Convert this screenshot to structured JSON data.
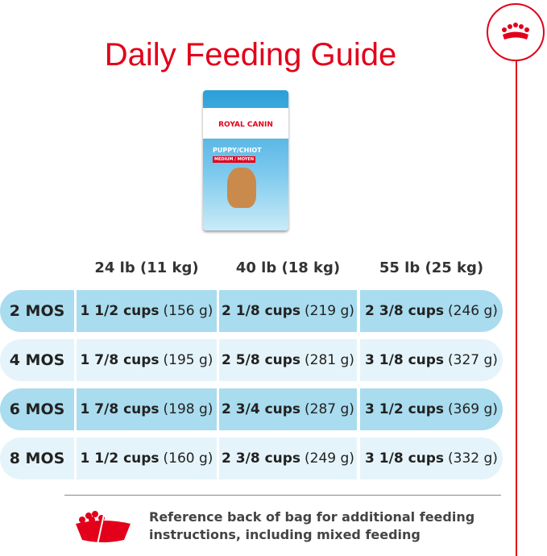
{
  "title": "Daily Feeding Guide",
  "product": {
    "brand": "ROYAL CANIN",
    "name": "PUPPY/CHIOT",
    "size": "MEDIUM / MOYEN"
  },
  "columns": [
    "24 lb (11 kg)",
    "40 lb (18 kg)",
    "55 lb (25 kg)"
  ],
  "rows": [
    {
      "age": "2 MOS",
      "cells": [
        {
          "cups": "1 1/2 cups",
          "grams": "(156 g)"
        },
        {
          "cups": "2 1/8 cups",
          "grams": "(219 g)"
        },
        {
          "cups": "2 3/8 cups",
          "grams": "(246 g)"
        }
      ]
    },
    {
      "age": "4 MOS",
      "cells": [
        {
          "cups": "1 7/8 cups",
          "grams": "(195 g)"
        },
        {
          "cups": "2 5/8 cups",
          "grams": "(281 g)"
        },
        {
          "cups": "3 1/8 cups",
          "grams": "(327 g)"
        }
      ]
    },
    {
      "age": "6 MOS",
      "cells": [
        {
          "cups": "1 7/8 cups",
          "grams": "(198 g)"
        },
        {
          "cups": "2 3/4 cups",
          "grams": "(287 g)"
        },
        {
          "cups": "3 1/2 cups",
          "grams": "(369 g)"
        }
      ]
    },
    {
      "age": "8 MOS",
      "cells": [
        {
          "cups": "1 1/2 cups",
          "grams": "(160 g)"
        },
        {
          "cups": "2 3/8 cups",
          "grams": "(249 g)"
        },
        {
          "cups": "3 1/8 cups",
          "grams": "(332 g)"
        }
      ]
    }
  ],
  "note": "Reference back of bag for additional feeding instructions, including mixed feeding",
  "colors": {
    "brand": "#e2001a",
    "row_dark": "#a9dcee",
    "row_light": "#e5f4fa"
  }
}
